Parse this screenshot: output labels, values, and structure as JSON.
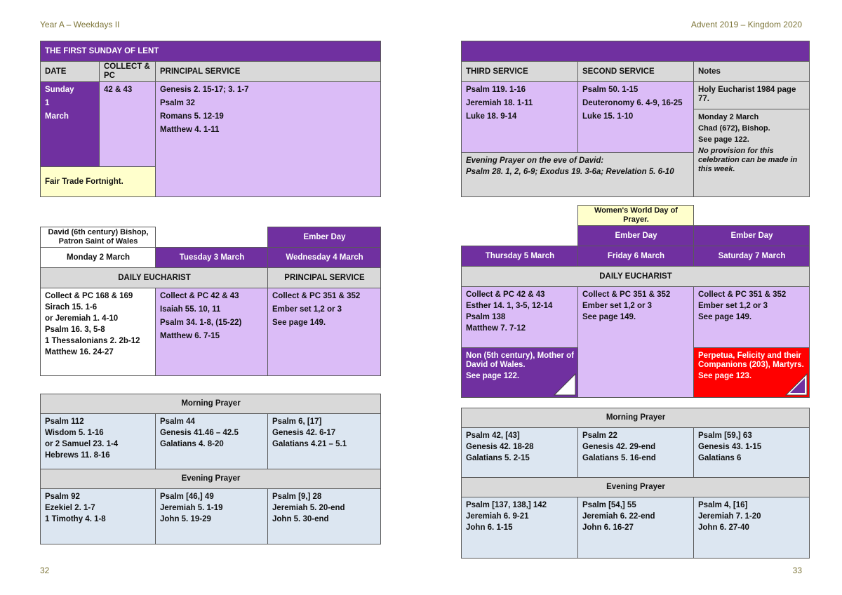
{
  "header": {
    "left": "Year A – Weekdays II",
    "right": "Advent 2019 – Kingdom 2020"
  },
  "footer": {
    "left": "32",
    "right": "33"
  },
  "sunday": {
    "title": "THE FIRST SUNDAY OF LENT",
    "columns": {
      "date": "DATE",
      "collect": "COLLECT & PC",
      "principal": "PRINCIPAL SERVICE",
      "third": "THIRD SERVICE",
      "second": "SECOND SERVICE",
      "notes": "Notes"
    },
    "date": [
      "Sunday",
      "1",
      "March"
    ],
    "collect": "42 & 43",
    "principal": [
      "Genesis 2. 15-17; 3. 1-7",
      "Psalm 32",
      "Romans 5. 12-19",
      "Matthew 4. 1-11"
    ],
    "remark": "Fair Trade Fortnight.",
    "third": [
      "Psalm 119. 1-16",
      "Jeremiah 18. 1-11",
      "Luke 18. 9-14"
    ],
    "second": [
      "Psalm 50. 1-15",
      "Deuteronomy 6. 4-9, 16-25",
      "Luke 15. 1-10"
    ],
    "eve": {
      "title": "Evening Prayer on the eve of David:",
      "readings": "Psalm 28. 1, 2, 6-9; Exodus 19. 3-6a; Revelation 5. 6-10"
    },
    "notes": [
      "Holy Eucharist 1984 page 77.",
      "Monday 2 March",
      "Chad (672), Bishop.",
      "See page 122.",
      "No provision for this celebration can be made in this week."
    ]
  },
  "weekdays_left": {
    "headings": [
      "DAILY EUCHARIST",
      "PRINCIPAL SERVICE"
    ],
    "days": [
      {
        "commemoration": "David (6th century) Bishop, Patron Saint of Wales",
        "day": "Monday 2 March",
        "readings": [
          "Collect & PC 168 & 169",
          "Sirach 15. 1-6",
          "or Jeremiah 1. 4-10",
          "Psalm 16. 3, 5-8",
          "1 Thessalonians 2. 2b-12",
          "Matthew 16. 24-27"
        ]
      },
      {
        "day": "Tuesday 3 March",
        "readings": [
          "Collect & PC 42 & 43",
          "Isaiah 55. 10, 11",
          "Psalm 34. 1-8, (15-22)",
          "Matthew 6. 7-15"
        ]
      },
      {
        "observance": "Ember Day",
        "day": "Wednesday 4 March",
        "readings": [
          "Collect & PC 351 & 352",
          "Ember set 1,2 or 3",
          "See page 149."
        ]
      }
    ]
  },
  "weekdays_right": {
    "heading": "DAILY EUCHARIST",
    "days": [
      {
        "day": "Thursday 5 March",
        "readings": [
          "Collect & PC 42 & 43",
          "Esther 14. 1, 3-5, 12-14",
          "Psalm 138",
          "Matthew 7. 7-12"
        ],
        "commemoration": {
          "text": "Non (5th century), Mother of David of Wales.",
          "see": "See page 122."
        }
      },
      {
        "note": "Women's World Day of Prayer.",
        "observance": "Ember Day",
        "day": "Friday 6 March",
        "readings": [
          "Collect & PC 351 & 352",
          "Ember set 1,2 or 3",
          "See page 149."
        ]
      },
      {
        "observance": "Ember Day",
        "day": "Saturday 7 March",
        "readings": [
          "Collect & PC 351 & 352",
          "Ember set 1,2 or 3",
          "See page 149."
        ],
        "commemoration": {
          "text": "Perpetua, Felicity and their Companions (203), Martyrs.",
          "see": "See page 123."
        }
      }
    ]
  },
  "offices_left": {
    "morning": {
      "title": "Morning Prayer",
      "columns": [
        [
          "Psalm 112",
          "Wisdom 5. 1-16",
          "or 2 Samuel 23. 1-4",
          "Hebrews 11. 8-16"
        ],
        [
          "Psalm 44",
          "Genesis 41.46 – 42.5",
          "Galatians 4. 8-20"
        ],
        [
          "Psalm 6, [17]",
          "Genesis 42. 6-17",
          "Galatians 4.21 – 5.1"
        ]
      ]
    },
    "evening": {
      "title": "Evening Prayer",
      "columns": [
        [
          "Psalm 92",
          "Ezekiel 2. 1-7",
          "1 Timothy 4. 1-8"
        ],
        [
          "Psalm [46,] 49",
          "Jeremiah 5. 1-19",
          "John 5. 19-29"
        ],
        [
          "Psalm [9,] 28",
          "Jeremiah 5. 20-end",
          "John 5. 30-end"
        ]
      ]
    }
  },
  "offices_right": {
    "morning": {
      "title": "Morning Prayer",
      "columns": [
        [
          "Psalm 42, [43]",
          "Genesis 42. 18-28",
          "Galatians 5. 2-15"
        ],
        [
          "Psalm 22",
          "Genesis 42. 29-end",
          "Galatians 5. 16-end"
        ],
        [
          "Psalm [59,] 63",
          "Genesis 43. 1-15",
          "Galatians 6"
        ]
      ]
    },
    "evening": {
      "title": "Evening Prayer",
      "columns": [
        [
          "Psalm [137, 138,] 142",
          "Jeremiah 6. 9-21",
          "John 6. 1-15"
        ],
        [
          "Psalm [54,] 55",
          "Jeremiah 6. 22-end",
          "John 6. 16-27"
        ],
        [
          "Psalm 4, [16]",
          "Jeremiah 7. 1-20",
          "John 6. 27-40"
        ]
      ]
    }
  }
}
